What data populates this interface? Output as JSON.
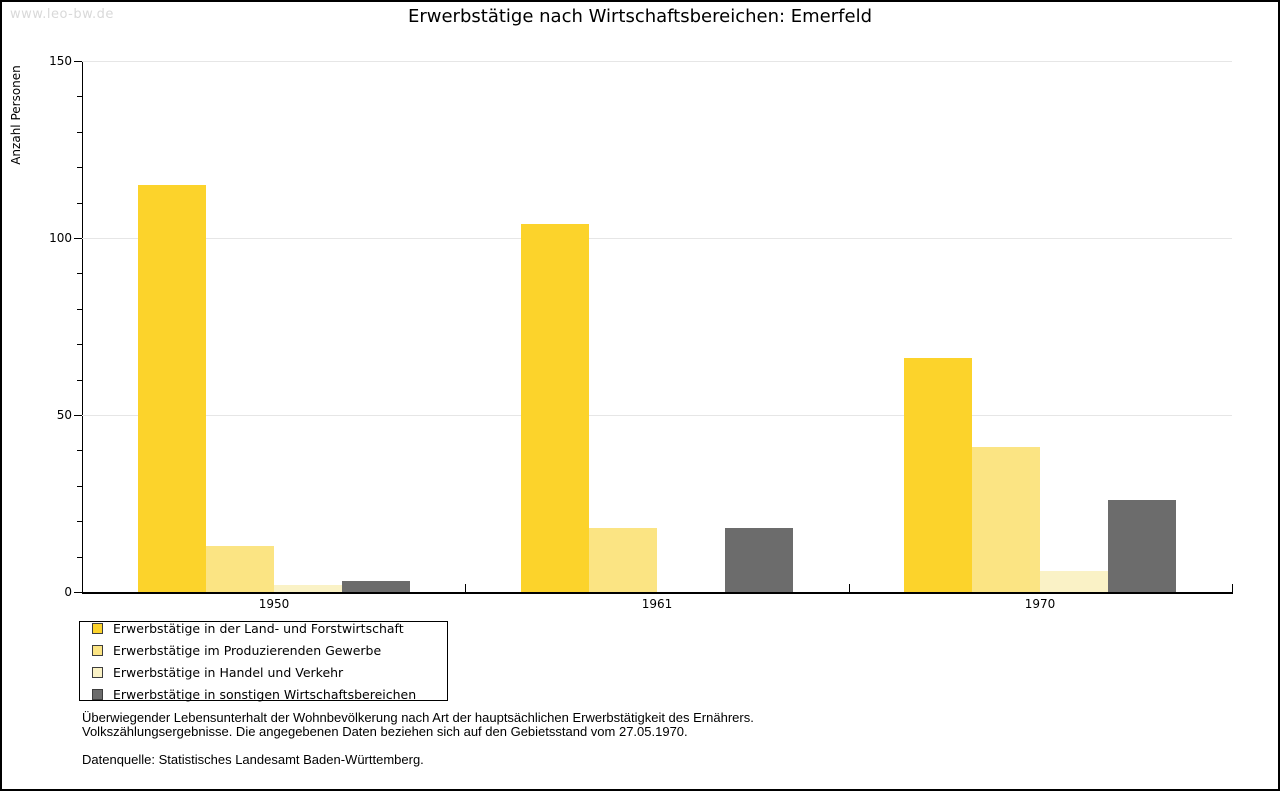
{
  "watermark": "www.leo-bw.de",
  "title": "Erwerbstätige nach Wirtschaftsbereichen: Emerfeld",
  "chart_data": {
    "type": "bar",
    "title": "Erwerbstätige nach Wirtschaftsbereichen: Emerfeld",
    "ylabel": "Anzahl Personen",
    "xlabel": "",
    "categories": [
      "1950",
      "1961",
      "1970"
    ],
    "series": [
      {
        "name": "Erwerbstätige in der Land- und Forstwirtschaft",
        "color": "#fcd32b",
        "values": [
          115,
          104,
          66
        ]
      },
      {
        "name": "Erwerbstätige im Produzierenden Gewerbe",
        "color": "#fbe483",
        "values": [
          13,
          18,
          41
        ]
      },
      {
        "name": "Erwerbstätige in Handel und Verkehr",
        "color": "#faf2c6",
        "values": [
          2,
          0,
          6
        ]
      },
      {
        "name": "Erwerbstätige in sonstigen Wirtschaftsbereichen",
        "color": "#6c6c6c",
        "values": [
          3,
          18,
          26
        ]
      }
    ],
    "ylim": [
      0,
      150
    ],
    "yticks": [
      0,
      50,
      100,
      150
    ],
    "minor_tick_step": 10,
    "grid": true,
    "gridline_color": "#e6e6e6",
    "legend_position": "bottom-left"
  },
  "footnotes": {
    "line1": "Überwiegender Lebensunterhalt der Wohnbevölkerung nach Art der hauptsächlichen Erwerbstätigkeit des Ernährers.",
    "line2": "Volkszählungsergebnisse. Die angegebenen Daten beziehen sich auf den Gebietsstand vom 27.05.1970.",
    "source": "Datenquelle: Statistisches Landesamt Baden-Württemberg."
  }
}
